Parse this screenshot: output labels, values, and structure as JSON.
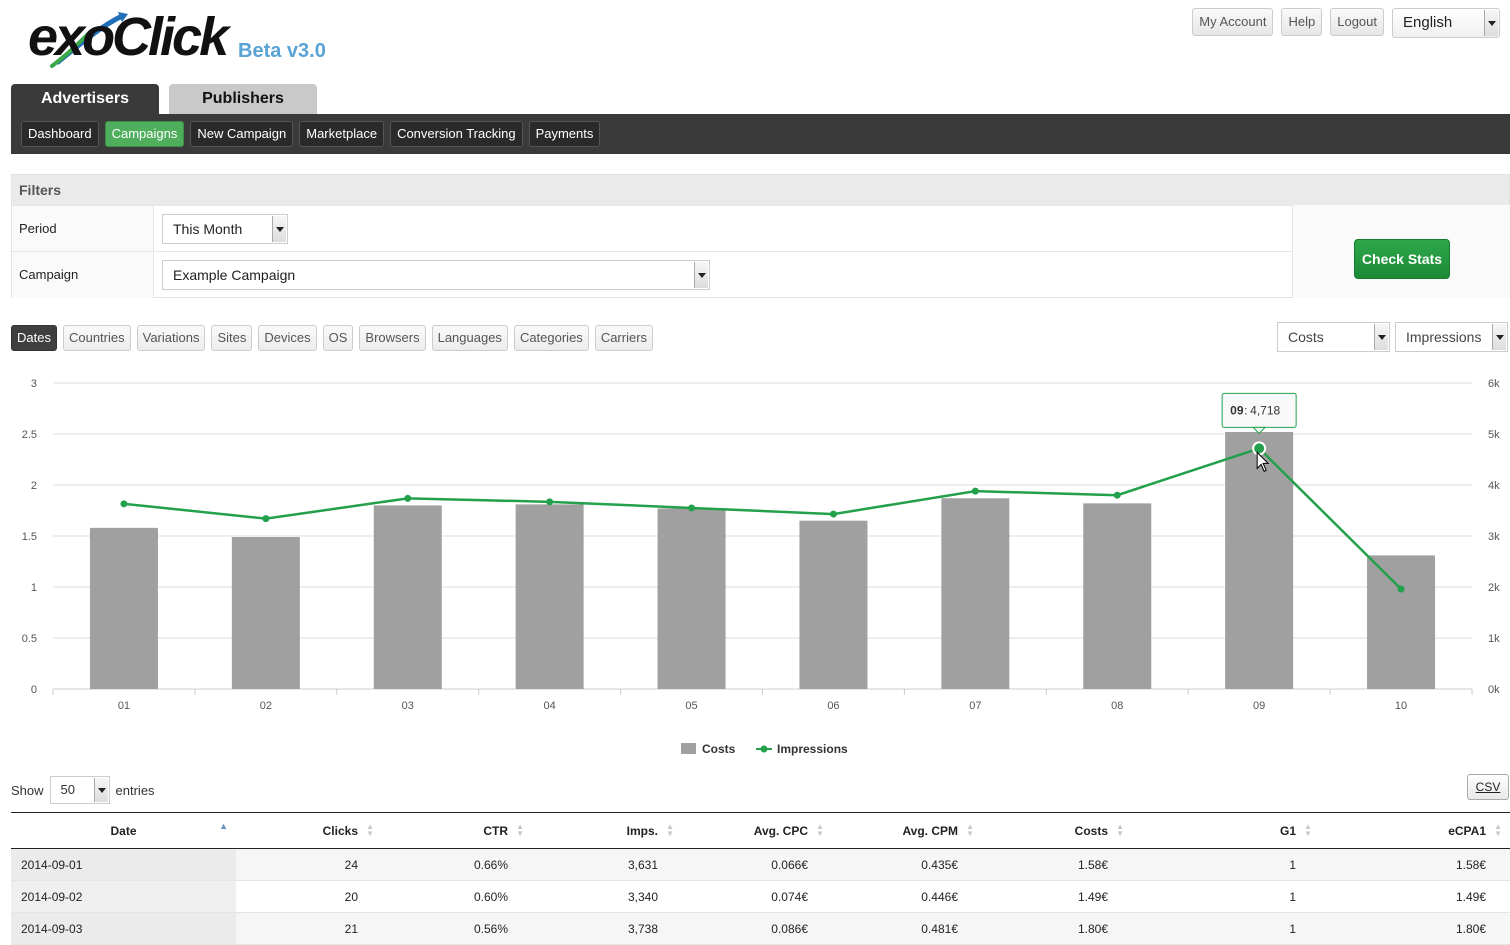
{
  "header": {
    "logo_text": "exoClick",
    "version": "Beta v3.0",
    "links": [
      "My Account",
      "Help",
      "Logout"
    ],
    "language": "English"
  },
  "main_tabs": [
    "Advertisers",
    "Publishers"
  ],
  "subnav": [
    "Dashboard",
    "Campaigns",
    "New Campaign",
    "Marketplace",
    "Conversion Tracking",
    "Payments"
  ],
  "filters": {
    "title": "Filters",
    "period_label": "Period",
    "period_value": "This Month",
    "campaign_label": "Campaign",
    "campaign_value": "Example Campaign",
    "check_stats": "Check Stats"
  },
  "group_tabs": [
    "Dates",
    "Countries",
    "Variations",
    "Sites",
    "Devices",
    "OS",
    "Browsers",
    "Languages",
    "Categories",
    "Carriers"
  ],
  "metric_left": "Costs",
  "metric_right": "Impressions",
  "chart_data": {
    "type": "bar",
    "categories": [
      "01",
      "02",
      "03",
      "04",
      "05",
      "06",
      "07",
      "08",
      "09",
      "10"
    ],
    "series": [
      {
        "name": "Costs",
        "type": "bar",
        "axis": "left",
        "color": "#a0a0a0",
        "values": [
          1.58,
          1.49,
          1.8,
          1.81,
          1.77,
          1.65,
          1.87,
          1.82,
          2.52,
          1.31
        ]
      },
      {
        "name": "Impressions",
        "type": "line",
        "axis": "right",
        "color": "#22a04b",
        "values": [
          3631,
          3340,
          3738,
          3670,
          3550,
          3430,
          3880,
          3800,
          4718,
          1960
        ]
      }
    ],
    "y_left": {
      "min": 0,
      "max": 3,
      "ticks": [
        "0",
        "0.5",
        "1",
        "1.5",
        "2",
        "2.5",
        "3"
      ]
    },
    "y_right": {
      "min": 0,
      "max": 6000,
      "ticks": [
        "0k",
        "1k",
        "2k",
        "3k",
        "4k",
        "5k",
        "6k"
      ]
    },
    "tooltip": {
      "label": "09",
      "value": "4,718"
    },
    "legend_position": "bottom-center",
    "grid": true
  },
  "table_controls": {
    "show_label": "Show",
    "entries_value": "50",
    "entries_label": "entries",
    "csv": "CSV"
  },
  "table": {
    "columns": [
      "Date",
      "Clicks",
      "CTR",
      "Imps.",
      "Avg. CPC",
      "Avg. CPM",
      "Costs",
      "G1",
      "eCPA1"
    ],
    "rows": [
      [
        "2014-09-01",
        "24",
        "0.66%",
        "3,631",
        "0.066€",
        "0.435€",
        "1.58€",
        "1",
        "1.58€"
      ],
      [
        "2014-09-02",
        "20",
        "0.60%",
        "3,340",
        "0.074€",
        "0.446€",
        "1.49€",
        "1",
        "1.49€"
      ],
      [
        "2014-09-03",
        "21",
        "0.56%",
        "3,738",
        "0.086€",
        "0.481€",
        "1.80€",
        "1",
        "1.80€"
      ]
    ]
  }
}
